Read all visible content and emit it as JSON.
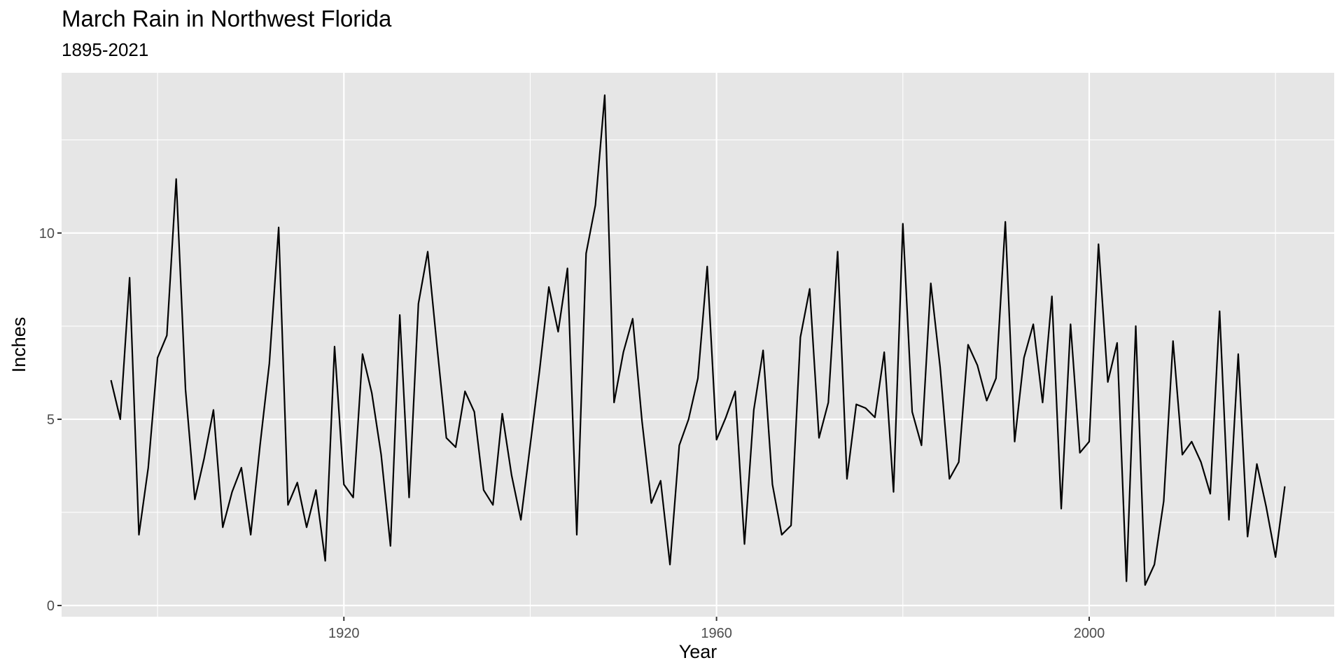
{
  "chart_data": {
    "type": "line",
    "title": "March Rain in Northwest Florida",
    "subtitle": "1895-2021",
    "xlabel": "Year",
    "ylabel": "Inches",
    "xlim": [
      1889.7,
      2026.3
    ],
    "ylim": [
      -0.3,
      14.3
    ],
    "x_ticks": [
      1920,
      1960,
      2000
    ],
    "y_ticks": [
      0,
      5,
      10
    ],
    "grid": true,
    "panel_background": "#e6e6e6",
    "grid_color": "#ffffff",
    "line_color": "#000000",
    "x": [
      1895,
      1896,
      1897,
      1898,
      1899,
      1900,
      1901,
      1902,
      1903,
      1904,
      1905,
      1906,
      1907,
      1908,
      1909,
      1910,
      1911,
      1912,
      1913,
      1914,
      1915,
      1916,
      1917,
      1918,
      1919,
      1920,
      1921,
      1922,
      1923,
      1924,
      1925,
      1926,
      1927,
      1928,
      1929,
      1930,
      1931,
      1932,
      1933,
      1934,
      1935,
      1936,
      1937,
      1938,
      1939,
      1940,
      1941,
      1942,
      1943,
      1944,
      1945,
      1946,
      1947,
      1948,
      1949,
      1950,
      1951,
      1952,
      1953,
      1954,
      1955,
      1956,
      1957,
      1958,
      1959,
      1960,
      1961,
      1962,
      1963,
      1964,
      1965,
      1966,
      1967,
      1968,
      1969,
      1970,
      1971,
      1972,
      1973,
      1974,
      1975,
      1976,
      1977,
      1978,
      1979,
      1980,
      1981,
      1982,
      1983,
      1984,
      1985,
      1986,
      1987,
      1988,
      1989,
      1990,
      1991,
      1992,
      1993,
      1994,
      1995,
      1996,
      1997,
      1998,
      1999,
      2000,
      2001,
      2002,
      2003,
      2004,
      2005,
      2006,
      2007,
      2008,
      2009,
      2010,
      2011,
      2012,
      2013,
      2014,
      2015,
      2016,
      2017,
      2018,
      2019,
      2020,
      2021
    ],
    "y": [
      6.05,
      5.0,
      8.8,
      1.9,
      3.7,
      6.65,
      7.25,
      11.45,
      5.8,
      2.85,
      3.95,
      5.25,
      2.1,
      3.05,
      3.7,
      1.9,
      4.3,
      6.5,
      10.15,
      2.7,
      3.3,
      2.1,
      3.1,
      1.2,
      6.95,
      3.25,
      2.9,
      6.75,
      5.7,
      4.05,
      1.6,
      7.8,
      2.9,
      8.1,
      9.5,
      6.95,
      4.5,
      4.25,
      5.75,
      5.2,
      3.1,
      2.7,
      5.15,
      3.5,
      2.3,
      4.3,
      6.3,
      8.55,
      7.35,
      9.05,
      1.9,
      9.45,
      10.75,
      13.7,
      5.45,
      6.8,
      7.7,
      4.95,
      2.75,
      3.35,
      1.1,
      4.3,
      5.0,
      6.1,
      9.1,
      4.45,
      5.05,
      5.75,
      1.65,
      5.25,
      6.85,
      3.25,
      1.9,
      2.15,
      7.2,
      8.5,
      4.5,
      5.45,
      9.5,
      3.4,
      5.4,
      5.3,
      5.05,
      6.8,
      3.05,
      10.25,
      5.2,
      4.3,
      8.65,
      6.4,
      3.4,
      3.85,
      7.0,
      6.45,
      5.5,
      6.1,
      10.3,
      4.4,
      6.65,
      7.55,
      5.45,
      8.3,
      2.6,
      7.55,
      4.1,
      4.4,
      9.7,
      6.0,
      7.05,
      0.65,
      7.5,
      0.55,
      1.1,
      2.8,
      7.1,
      4.05,
      4.4,
      3.85,
      3.0,
      7.9,
      2.3,
      6.75,
      1.85,
      3.8,
      2.65,
      1.3,
      3.2
    ]
  }
}
